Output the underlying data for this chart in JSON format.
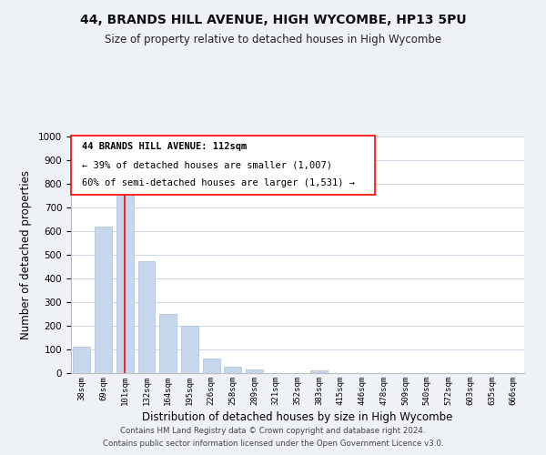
{
  "title1": "44, BRANDS HILL AVENUE, HIGH WYCOMBE, HP13 5PU",
  "title2": "Size of property relative to detached houses in High Wycombe",
  "xlabel": "Distribution of detached houses by size in High Wycombe",
  "ylabel": "Number of detached properties",
  "bar_color": "#c8d8ec",
  "bar_edge_color": "#a8c0d8",
  "categories": [
    "38sqm",
    "69sqm",
    "101sqm",
    "132sqm",
    "164sqm",
    "195sqm",
    "226sqm",
    "258sqm",
    "289sqm",
    "321sqm",
    "352sqm",
    "383sqm",
    "415sqm",
    "446sqm",
    "478sqm",
    "509sqm",
    "540sqm",
    "572sqm",
    "603sqm",
    "635sqm",
    "666sqm"
  ],
  "values": [
    110,
    620,
    800,
    475,
    250,
    200,
    60,
    28,
    15,
    0,
    0,
    10,
    0,
    0,
    0,
    0,
    0,
    0,
    0,
    0,
    0
  ],
  "ylim": [
    0,
    1000
  ],
  "yticks": [
    0,
    100,
    200,
    300,
    400,
    500,
    600,
    700,
    800,
    900,
    1000
  ],
  "red_line_index": 2,
  "annotation_title": "44 BRANDS HILL AVENUE: 112sqm",
  "annotation_line1": "← 39% of detached houses are smaller (1,007)",
  "annotation_line2": "60% of semi-detached houses are larger (1,531) →",
  "footer1": "Contains HM Land Registry data © Crown copyright and database right 2024.",
  "footer2": "Contains public sector information licensed under the Open Government Licence v3.0.",
  "background_color": "#eef2f7",
  "plot_bg_color": "#ffffff",
  "grid_color": "#ccd8e8"
}
